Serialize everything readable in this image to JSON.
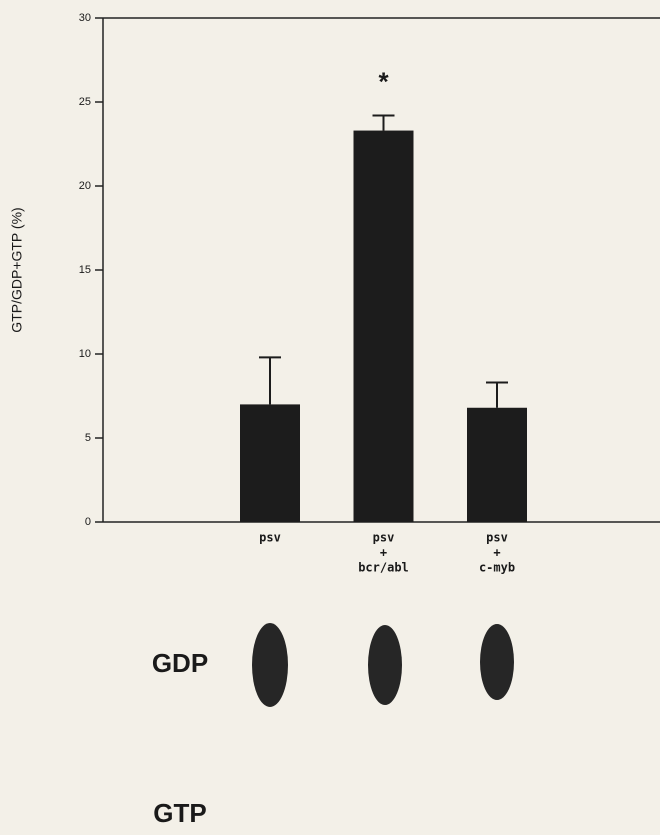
{
  "chart_data": {
    "type": "bar",
    "y_label": "GTP/GDP+GTP (%)",
    "categories": [
      [
        "psv"
      ],
      [
        "psv",
        "+",
        "bcr/abl"
      ],
      [
        "psv",
        "+",
        "c-myb"
      ]
    ],
    "values": [
      7.0,
      23.3,
      6.8
    ],
    "errors": [
      2.8,
      0.9,
      1.5
    ],
    "color": "#1c1c1c",
    "ylim": [
      0,
      30
    ],
    "yticks": [
      0,
      5,
      10,
      15,
      20,
      25,
      30
    ],
    "annotations": [
      {
        "text": "*",
        "category": 1
      }
    ],
    "blot_labels": [
      "GDP",
      "GTP"
    ]
  }
}
